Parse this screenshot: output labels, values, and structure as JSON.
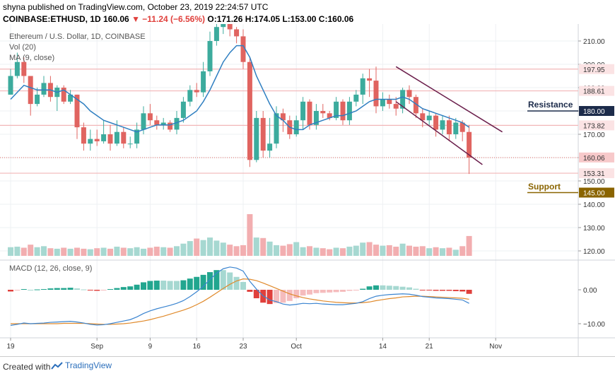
{
  "header": {
    "user": "shyna",
    "published": "published on TradingView.com, October 23, 2019 22:24:57 UTC",
    "symbol": "COINBASE:ETHUSD, 1D",
    "last": "160.06",
    "change": "▼ −11.24 (−6.56%)",
    "ohlc": "O:171.26 H:174.05 L:153.00 C:160.06"
  },
  "legend": {
    "title": "Ethereum / U.S. Dollar, 1D, COINBASE",
    "vol": "Vol (20)",
    "ma": "MA (9, close)",
    "macd": "MACD (12, 26, close, 9)"
  },
  "annotations": {
    "resistance": "Resistance",
    "support": "Support"
  },
  "footer": {
    "created": "Created with",
    "brand": "TradingView"
  },
  "colors": {
    "up": "#3cab9d",
    "down": "#e06460",
    "ma": "#2f7fc1",
    "channel": "#6b1f4c",
    "resistance_line": "#1c2b4a",
    "support_line": "#8a6400",
    "hline": "#f2b6b8"
  },
  "chart_data": {
    "type": "candlestick",
    "price_axis": {
      "ticks": [
        120,
        130,
        140,
        150,
        160,
        170,
        180,
        190,
        200,
        210
      ],
      "tick_labels": [
        "120.00",
        "130.00",
        "140.00",
        "150.00",
        "160.00",
        "170.00",
        "180.00",
        "190.00",
        "200.00",
        "210.00"
      ]
    },
    "price_labels": [
      {
        "value": 197.95,
        "text": "197.95",
        "style": "plain"
      },
      {
        "value": 188.61,
        "text": "188.61",
        "style": "plain"
      },
      {
        "value": 180.0,
        "text": "180.00",
        "style": "dark"
      },
      {
        "value": 173.82,
        "text": "173.82",
        "style": "plain"
      },
      {
        "value": 160.06,
        "text": "160.06",
        "style": "red"
      },
      {
        "value": 153.31,
        "text": "153.31",
        "style": "plain"
      },
      {
        "value": 145.0,
        "text": "145.00",
        "style": "gold"
      }
    ],
    "horizontal_lines": [
      197.95,
      188.61,
      173.82,
      153.31
    ],
    "resistance_level": 180.0,
    "support_level": 145.0,
    "macd_axis": {
      "ticks": [
        0,
        -10
      ],
      "tick_labels": [
        "0.00",
        "−10.00"
      ]
    },
    "x_tick_labels": [
      {
        "index": 0,
        "label": "19"
      },
      {
        "index": 13,
        "label": "Sep"
      },
      {
        "index": 21,
        "label": "9"
      },
      {
        "index": 28,
        "label": "16"
      },
      {
        "index": 35,
        "label": "23"
      },
      {
        "index": 43,
        "label": "Oct"
      },
      {
        "index": 56,
        "label": "14"
      },
      {
        "index": 63,
        "label": "21"
      },
      {
        "index": 73,
        "label": "Nov"
      }
    ],
    "candles": [
      [
        187,
        195,
        198,
        187
      ],
      [
        195,
        201,
        205,
        194
      ],
      [
        201,
        195,
        203,
        192
      ],
      [
        195,
        183,
        195,
        178
      ],
      [
        183,
        187,
        190,
        182
      ],
      [
        187,
        192,
        195,
        186
      ],
      [
        192,
        186,
        195,
        184
      ],
      [
        186,
        190,
        191,
        180
      ],
      [
        190,
        184,
        191,
        183
      ],
      [
        184,
        187,
        189,
        183
      ],
      [
        187,
        173,
        187,
        168
      ],
      [
        173,
        166,
        175,
        163
      ],
      [
        166,
        168,
        172,
        163
      ],
      [
        168,
        167,
        172,
        165
      ],
      [
        167,
        170,
        176,
        166
      ],
      [
        170,
        166,
        174,
        163
      ],
      [
        166,
        171,
        176,
        165
      ],
      [
        171,
        166,
        173,
        164
      ],
      [
        166,
        166,
        169,
        164
      ],
      [
        166,
        172,
        175,
        164
      ],
      [
        172,
        179,
        182,
        170
      ],
      [
        179,
        176,
        183,
        174
      ],
      [
        176,
        174,
        178,
        172
      ],
      [
        174,
        175,
        177,
        172
      ],
      [
        175,
        172,
        176,
        171
      ],
      [
        172,
        177,
        180,
        170
      ],
      [
        177,
        184,
        186,
        175
      ],
      [
        184,
        189,
        191,
        182
      ],
      [
        189,
        188,
        192,
        186
      ],
      [
        188,
        197,
        201,
        186
      ],
      [
        197,
        210,
        214,
        195
      ],
      [
        210,
        216,
        218,
        208
      ],
      [
        216,
        220,
        221,
        213
      ],
      [
        220,
        215,
        221,
        212
      ],
      [
        215,
        212,
        216,
        209
      ],
      [
        212,
        201,
        215,
        198
      ],
      [
        201,
        159,
        203,
        156
      ],
      [
        159,
        177,
        180,
        158
      ],
      [
        177,
        163,
        180,
        160
      ],
      [
        163,
        166,
        177,
        160
      ],
      [
        166,
        179,
        182,
        164
      ],
      [
        179,
        176,
        181,
        171
      ],
      [
        176,
        170,
        178,
        168
      ],
      [
        170,
        176,
        178,
        169
      ],
      [
        176,
        184,
        186,
        172
      ],
      [
        184,
        174,
        185,
        172
      ],
      [
        174,
        180,
        183,
        172
      ],
      [
        180,
        179,
        183,
        177
      ],
      [
        179,
        177,
        180,
        176
      ],
      [
        177,
        184,
        186,
        176
      ],
      [
        184,
        176,
        185,
        174
      ],
      [
        176,
        184,
        186,
        174
      ],
      [
        184,
        187,
        189,
        182
      ],
      [
        187,
        194,
        196,
        183
      ],
      [
        194,
        193,
        198,
        186
      ],
      [
        193,
        182,
        199,
        179
      ],
      [
        182,
        185,
        188,
        180
      ],
      [
        185,
        183,
        187,
        181
      ],
      [
        183,
        181,
        186,
        178
      ],
      [
        181,
        189,
        190,
        179
      ],
      [
        189,
        186,
        191,
        183
      ],
      [
        186,
        179,
        187,
        177
      ],
      [
        179,
        176,
        181,
        173
      ],
      [
        176,
        178,
        180,
        174
      ],
      [
        178,
        172,
        179,
        169
      ],
      [
        172,
        176,
        178,
        170
      ],
      [
        176,
        170,
        178,
        167
      ],
      [
        170,
        175,
        177,
        168
      ],
      [
        175,
        171,
        176,
        167
      ],
      [
        171,
        160,
        174,
        153
      ]
    ],
    "ma9": [
      185,
      188,
      191,
      190,
      189,
      189,
      189,
      188,
      189,
      187,
      185,
      183,
      180,
      178,
      176,
      175,
      174,
      173,
      172,
      171,
      172,
      173,
      174,
      174,
      174,
      175,
      176,
      178,
      180,
      184,
      189,
      195,
      201,
      205,
      208,
      208,
      203,
      195,
      189,
      183,
      178,
      176,
      173,
      172,
      172,
      174,
      175,
      176,
      177,
      178,
      178,
      179,
      180,
      182,
      184,
      185,
      185,
      185,
      185,
      186,
      185,
      183,
      181,
      180,
      179,
      178,
      177,
      176,
      175,
      173
    ],
    "volume": [
      1.7,
      1.8,
      1.6,
      2.2,
      1.7,
      1.9,
      1.5,
      1.4,
      1.6,
      1.4,
      1.6,
      1.4,
      1.3,
      1.5,
      1.6,
      1.4,
      1.8,
      1.6,
      1.5,
      1.7,
      1.4,
      1.6,
      1.8,
      1.7,
      1.6,
      1.9,
      2.4,
      2.9,
      3.4,
      3.1,
      3.6,
      3.0,
      2.6,
      2.2,
      1.9,
      2.1,
      8.2,
      3.6,
      3.5,
      2.8,
      2.1,
      2.0,
      2.3,
      2.7,
      1.7,
      1.9,
      1.6,
      1.5,
      1.3,
      1.6,
      1.5,
      1.8,
      2.0,
      2.6,
      2.7,
      2.2,
      2.0,
      2.1,
      1.8,
      2.4,
      2.0,
      1.8,
      1.9,
      1.5,
      1.7,
      1.5,
      1.6,
      1.2,
      1.9,
      3.9
    ],
    "macd_line": [
      -10.5,
      -10.2,
      -9.8,
      -10.0,
      -9.9,
      -9.8,
      -9.6,
      -9.5,
      -9.4,
      -9.3,
      -9.5,
      -9.8,
      -10.2,
      -10.4,
      -10.3,
      -10.0,
      -9.6,
      -9.2,
      -8.8,
      -8.0,
      -7.0,
      -6.2,
      -5.6,
      -5.1,
      -4.6,
      -4.0,
      -3.2,
      -2.0,
      -0.6,
      1.0,
      3.0,
      4.9,
      6.2,
      6.7,
      6.4,
      5.5,
      2.5,
      0.2,
      -1.8,
      -3.0,
      -3.5,
      -4.2,
      -4.5,
      -4.3,
      -4.0,
      -4.1,
      -4.0,
      -4.2,
      -4.3,
      -4.4,
      -4.4,
      -4.2,
      -4.0,
      -3.5,
      -2.6,
      -1.9,
      -1.6,
      -1.4,
      -1.3,
      -1.2,
      -1.3,
      -1.6,
      -2.0,
      -2.2,
      -2.4,
      -2.5,
      -2.6,
      -2.8,
      -3.0,
      -4.0
    ],
    "macd_signal": [
      -10.0,
      -10.0,
      -10.0,
      -10.0,
      -10.0,
      -10.0,
      -10.0,
      -10.0,
      -9.9,
      -9.9,
      -9.9,
      -9.9,
      -10.0,
      -10.1,
      -10.2,
      -10.2,
      -10.1,
      -10.0,
      -9.8,
      -9.5,
      -9.2,
      -8.8,
      -8.3,
      -7.8,
      -7.2,
      -6.6,
      -6.0,
      -5.3,
      -4.4,
      -3.4,
      -2.2,
      -0.9,
      0.4,
      1.6,
      2.6,
      3.2,
      3.1,
      2.7,
      2.0,
      1.2,
      0.4,
      -0.4,
      -1.2,
      -1.8,
      -2.3,
      -2.7,
      -3.0,
      -3.3,
      -3.5,
      -3.7,
      -3.8,
      -3.9,
      -3.9,
      -3.8,
      -3.6,
      -3.2,
      -2.9,
      -2.6,
      -2.4,
      -2.1,
      -2.0,
      -1.9,
      -1.9,
      -2.0,
      -2.1,
      -2.2,
      -2.3,
      -2.4,
      -2.5,
      -2.8
    ]
  }
}
